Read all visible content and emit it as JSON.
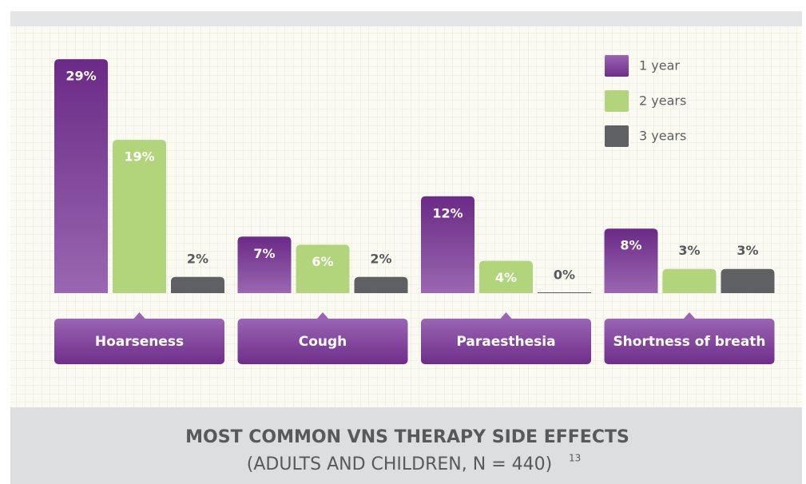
{
  "chart_data": {
    "type": "bar",
    "title": "MOST COMMON VNS THERAPY SIDE EFFECTS",
    "subtitle": "(ADULTS AND CHILDREN, N = 440)",
    "footnote_ref": "13",
    "categories": [
      "Hoarseness",
      "Cough",
      "Paraesthesia",
      "Shortness of breath"
    ],
    "series": [
      {
        "name": "1 year",
        "color": "#7d3f99",
        "values": [
          29,
          7,
          12,
          8
        ],
        "value_labels": [
          "29%",
          "7%",
          "12%",
          "8%"
        ]
      },
      {
        "name": "2 years",
        "color": "#b2d47a",
        "values": [
          19,
          6,
          4,
          3
        ],
        "value_labels": [
          "19%",
          "6%",
          "4%",
          "3%"
        ]
      },
      {
        "name": "3 years",
        "color": "#5f6063",
        "values": [
          2,
          2,
          0,
          3
        ],
        "value_labels": [
          "2%",
          "2%",
          "0%",
          "3%"
        ]
      }
    ],
    "legend": "top-right"
  }
}
